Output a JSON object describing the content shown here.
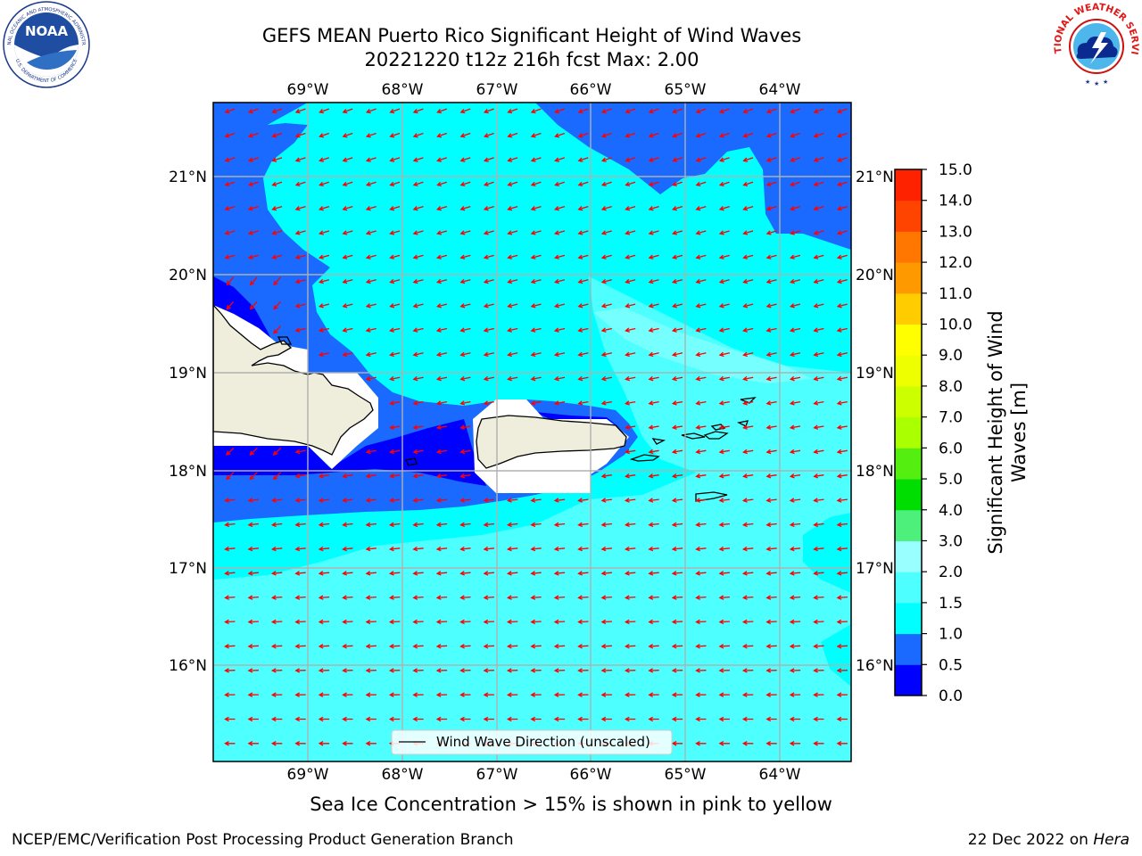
{
  "title_line1": "GEFS MEAN Puerto Rico Significant Height of Wind Waves",
  "title_line2": "20221220 t12z 216h fcst   Max: 2.00",
  "map": {
    "lon_ticks": [
      "69°W",
      "68°W",
      "67°W",
      "66°W",
      "65°W",
      "64°W"
    ],
    "lat_ticks": [
      "21°N",
      "20°N",
      "19°N",
      "18°N",
      "17°N",
      "16°N"
    ],
    "legend_label": "Wind Wave Direction (unscaled)",
    "land_color": "#efeedc",
    "arrow_color": "#ff0000"
  },
  "colorbar": {
    "label_line1": "Significant Height of Wind",
    "label_line2": "Waves [m]",
    "ticks": [
      "0.0",
      "0.5",
      "1.0",
      "1.5",
      "2.0",
      "3.0",
      "4.0",
      "5.0",
      "6.0",
      "7.0",
      "8.0",
      "9.0",
      "10.0",
      "11.0",
      "12.0",
      "13.0",
      "14.0",
      "15.0"
    ],
    "colors": [
      "#0000ff",
      "#1a6aff",
      "#00ffff",
      "#4dffff",
      "#99ffff",
      "#4cf07a",
      "#00dd00",
      "#55ee11",
      "#aaff00",
      "#ccff00",
      "#eeff00",
      "#ffff00",
      "#ffcc00",
      "#ff9900",
      "#ff7700",
      "#ff4400",
      "#ff2200"
    ]
  },
  "sea_ice_note": "Sea Ice Concentration > 15% is shown in pink to yellow",
  "footer_left": "NCEP/EMC/Verification Post Processing Product Generation Branch",
  "footer_right_date": "22 Dec 2022 on ",
  "footer_right_machine": "Hera",
  "logos": {
    "noaa_text": "NOAA",
    "noaa_ring": "NATIONAL OCEANIC AND ATMOSPHERIC ADMINISTRATION",
    "noaa_ring_bottom": "U.S. DEPARTMENT OF COMMERCE",
    "nws_ring": "NATIONAL WEATHER SERVICE"
  }
}
